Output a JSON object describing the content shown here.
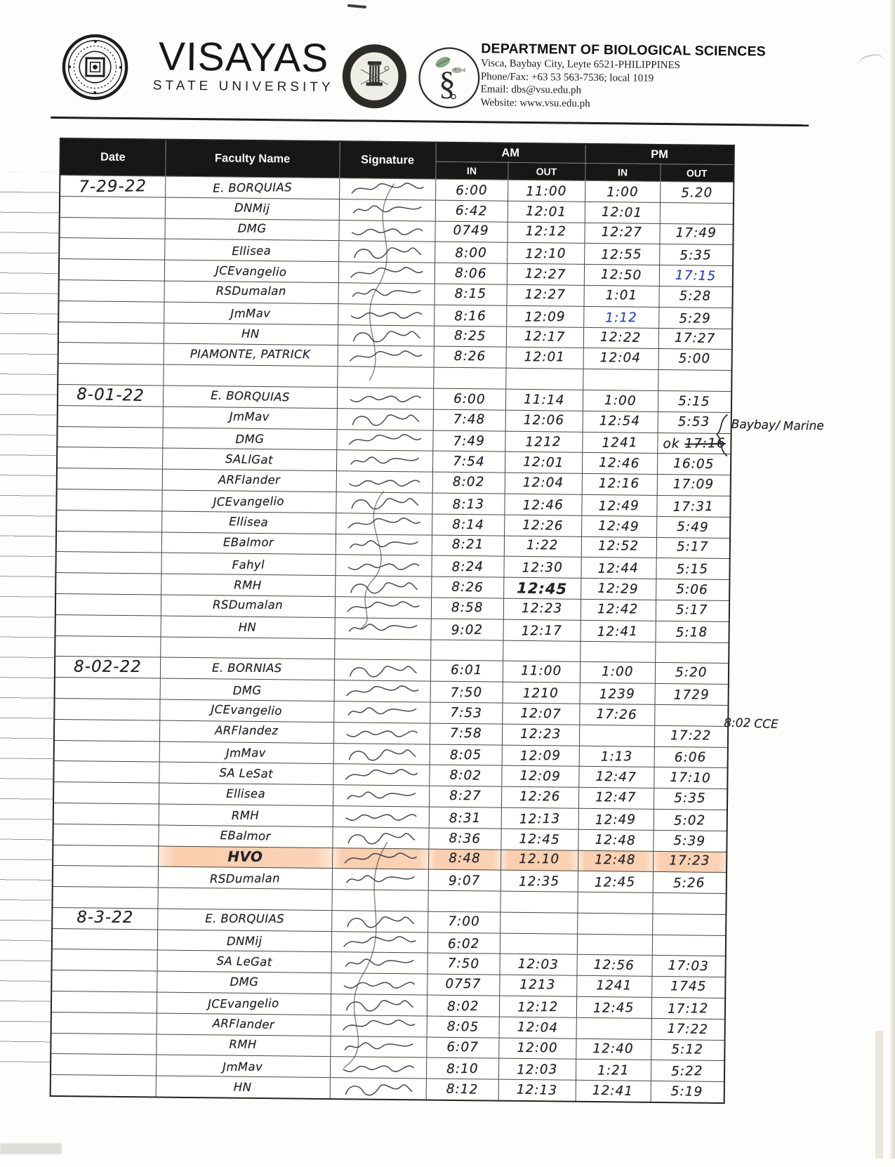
{
  "header": {
    "university": "VISAYAS",
    "university_sub": "STATE UNIVERSITY",
    "cas_seal_year": "•2002•",
    "department": "DEPARTMENT OF BIOLOGICAL SCIENCES",
    "address": "Visca, Baybay City, Leyte 6521-PHILIPPINES",
    "phone": "Phone/Fax: +63 53  563-7536; local 1019",
    "email": "Email: dbs@vsu.edu.ph",
    "website": "Website: www.vsu.edu.ph",
    "seals": [
      "vsu-university-seal",
      "college-of-arts-and-sciences-seal",
      "department-of-biological-sciences-seal"
    ]
  },
  "colors": {
    "ink": "#23232b",
    "blue_ink": "#2946b0",
    "highlighter": "#f6a66c",
    "header_band": "#171716"
  },
  "table": {
    "headers": {
      "date": "Date",
      "faculty": "Faculty Name",
      "signature": "Signature",
      "am": "AM",
      "pm": "PM",
      "in": "IN",
      "out": "OUT"
    },
    "blocks": [
      {
        "date": "7-29-22",
        "rows": [
          {
            "name": "E. BORQUIAS",
            "sig": true,
            "am_in": "6:00",
            "am_out": "11:00",
            "pm_in": "1:00",
            "pm_out": "5.20"
          },
          {
            "name": "DNMij",
            "sig": true,
            "am_in": "6:42",
            "am_out": "12:01",
            "pm_in": "12:01",
            "pm_out": ""
          },
          {
            "name": "DMG",
            "sig": true,
            "am_in": "0749",
            "am_out": "12:12",
            "pm_in": "12:27",
            "pm_out": "17:49"
          },
          {
            "name": "Ellisea",
            "sig": true,
            "am_in": "8:00",
            "am_out": "12:10",
            "pm_in": "12:55",
            "pm_out": "5:35"
          },
          {
            "name": "JCEvangelio",
            "sig": true,
            "am_in": "8:06",
            "am_out": "12:27",
            "pm_in": "12:50",
            "pm_out": "17:15",
            "blue": [
              "pm_out"
            ]
          },
          {
            "name": "RSDumalan",
            "sig": true,
            "am_in": "8:15",
            "am_out": "12:27",
            "pm_in": "1:01",
            "pm_out": "5:28"
          },
          {
            "name": "JmMav",
            "sig": true,
            "am_in": "8:16",
            "am_out": "12:09",
            "pm_in": "1:12",
            "pm_out": "5:29",
            "blue": [
              "pm_in"
            ]
          },
          {
            "name": "HN",
            "sig": true,
            "am_in": "8:25",
            "am_out": "12:17",
            "pm_in": "12:22",
            "pm_out": "17:27"
          },
          {
            "name": "PIAMONTE, PATRICK",
            "sig": true,
            "am_in": "8:26",
            "am_out": "12:01",
            "pm_in": "12:04",
            "pm_out": "5:00"
          },
          {
            "blank": true
          }
        ]
      },
      {
        "date": "8-01-22",
        "rows": [
          {
            "name": "E. BORQUIAS",
            "sig": true,
            "am_in": "6:00",
            "am_out": "11:14",
            "pm_in": "1:00",
            "pm_out": "5:15"
          },
          {
            "name": "JmMav",
            "sig": true,
            "am_in": "7:48",
            "am_out": "12:06",
            "pm_in": "12:54",
            "pm_out": "5:53"
          },
          {
            "name": "DMG",
            "sig": true,
            "am_in": "7:49",
            "am_out": "1212",
            "pm_in": "1241",
            "pm_out": "ok ~17:16~"
          },
          {
            "name": "SALlGat",
            "sig": true,
            "am_in": "7:54",
            "am_out": "12:01",
            "pm_in": "12:46",
            "pm_out": "16:05"
          },
          {
            "name": "ARFlander",
            "sig": true,
            "am_in": "8:02",
            "am_out": "12:04",
            "pm_in": "12:16",
            "pm_out": "17:09"
          },
          {
            "name": "JCEvangelio",
            "sig": true,
            "am_in": "8:13",
            "am_out": "12:46",
            "pm_in": "12:49",
            "pm_out": "17:31"
          },
          {
            "name": "Ellisea",
            "sig": true,
            "am_in": "8:14",
            "am_out": "12:26",
            "pm_in": "12:49",
            "pm_out": "5:49"
          },
          {
            "name": "EBalmor",
            "sig": true,
            "am_in": "8:21",
            "am_out": "1:22",
            "pm_in": "12:52",
            "pm_out": "5:17"
          },
          {
            "name": "Fahyl",
            "sig": true,
            "am_in": "8:24",
            "am_out": "12:30",
            "pm_in": "12:44",
            "pm_out": "5:15"
          },
          {
            "name": "RMH",
            "sig": true,
            "am_in": "8:26",
            "am_out": "12:45",
            "pm_in": "12:29",
            "pm_out": "5:06",
            "bold": [
              "am_out"
            ]
          },
          {
            "name": "RSDumalan",
            "sig": true,
            "am_in": "8:58",
            "am_out": "12:23",
            "pm_in": "12:42",
            "pm_out": "5:17"
          },
          {
            "name": "HN",
            "sig": true,
            "am_in": "9:02",
            "am_out": "12:17",
            "pm_in": "12:41",
            "pm_out": "5:18"
          },
          {
            "blank": true
          }
        ]
      },
      {
        "date": "8-02-22",
        "rows": [
          {
            "name": "E. BORNIAS",
            "sig": true,
            "am_in": "6:01",
            "am_out": "11:00",
            "pm_in": "1:00",
            "pm_out": "5:20"
          },
          {
            "name": "DMG",
            "sig": true,
            "am_in": "7:50",
            "am_out": "1210",
            "pm_in": "1239",
            "pm_out": "1729"
          },
          {
            "name": "JCEvangelio",
            "sig": true,
            "am_in": "7:53",
            "am_out": "12:07",
            "pm_in": "17:26",
            "pm_out": ""
          },
          {
            "name": "ARFlandez",
            "sig": true,
            "am_in": "7:58",
            "am_out": "12:23",
            "pm_in": "",
            "pm_out": "17:22"
          },
          {
            "name": "JmMav",
            "sig": true,
            "am_in": "8:05",
            "am_out": "12:09",
            "pm_in": "1:13",
            "pm_out": "6:06"
          },
          {
            "name": "SA LeSat",
            "sig": true,
            "am_in": "8:02",
            "am_out": "12:09",
            "pm_in": "12:47",
            "pm_out": "17:10"
          },
          {
            "name": "Ellisea",
            "sig": true,
            "am_in": "8:27",
            "am_out": "12:26",
            "pm_in": "12:47",
            "pm_out": "5:35"
          },
          {
            "name": "RMH",
            "sig": true,
            "am_in": "8:31",
            "am_out": "12:13",
            "pm_in": "12:49",
            "pm_out": "5:02"
          },
          {
            "name": "EBalmor",
            "sig": true,
            "am_in": "8:36",
            "am_out": "12:45",
            "pm_in": "12:48",
            "pm_out": "5:39"
          },
          {
            "name": "HVO",
            "sig": true,
            "highlight": true,
            "am_in": "8:48",
            "am_out": "12.10",
            "pm_in": "12:48",
            "pm_out": "17:23"
          },
          {
            "name": "RSDumalan",
            "sig": true,
            "am_in": "9:07",
            "am_out": "12:35",
            "pm_in": "12:45",
            "pm_out": "5:26"
          },
          {
            "blank": true
          }
        ]
      },
      {
        "date": "8-3-22",
        "rows": [
          {
            "name": "E. BORQUIAS",
            "sig": true,
            "am_in": "7:00",
            "am_out": "",
            "pm_in": "",
            "pm_out": ""
          },
          {
            "name": "DNMij",
            "sig": true,
            "am_in": "6:02",
            "am_out": "",
            "pm_in": "",
            "pm_out": ""
          },
          {
            "name": "SA LeGat",
            "sig": true,
            "am_in": "7:50",
            "am_out": "12:03",
            "pm_in": "12:56",
            "pm_out": "17:03"
          },
          {
            "name": "DMG",
            "sig": true,
            "am_in": "0757",
            "am_out": "1213",
            "pm_in": "1241",
            "pm_out": "1745"
          },
          {
            "name": "JCEvangelio",
            "sig": true,
            "am_in": "8:02",
            "am_out": "12:12",
            "pm_in": "12:45",
            "pm_out": "17:12"
          },
          {
            "name": "ARFlander",
            "sig": true,
            "am_in": "8:05",
            "am_out": "12:04",
            "pm_in": "",
            "pm_out": "17:22"
          },
          {
            "name": "RMH",
            "sig": true,
            "am_in": "6:07",
            "am_out": "12:00",
            "pm_in": "12:40",
            "pm_out": "5:12"
          },
          {
            "name": "JmMav",
            "sig": true,
            "am_in": "8:10",
            "am_out": "12:03",
            "pm_in": "1:21",
            "pm_out": "5:22"
          },
          {
            "name": "HN",
            "sig": true,
            "am_in": "8:12",
            "am_out": "12:13",
            "pm_in": "12:41",
            "pm_out": "5:19"
          }
        ]
      }
    ]
  },
  "annotations": {
    "baybay_marine": {
      "line1": "Baybay/",
      "line2": "Marine"
    },
    "cce": {
      "line1": "8:02",
      "line2": "CCE"
    }
  }
}
